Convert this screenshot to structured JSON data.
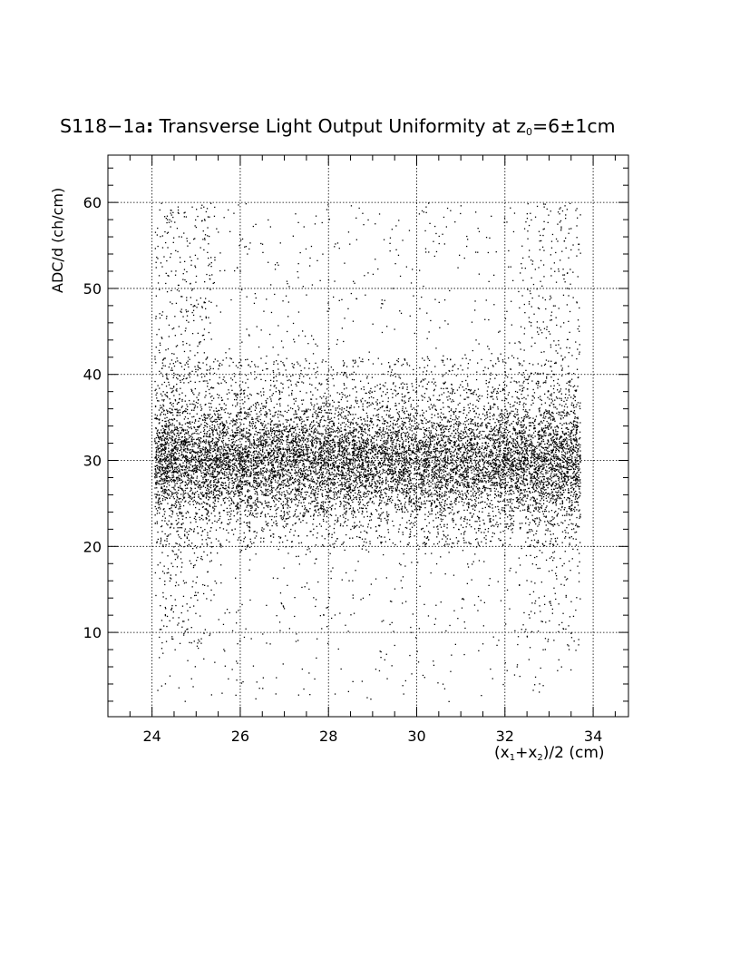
{
  "chart_data": {
    "type": "scatter",
    "title": {
      "prefix": "S118−1a",
      "colon": ":",
      "main": " Transverse Light Output Uniformity at z",
      "sub": "0",
      "suffix": "=6±1cm"
    },
    "xlabel": {
      "pre": "(x",
      "s1": "1",
      "mid": "+x",
      "s2": "2",
      "post": ")/2 (cm)"
    },
    "ylabel": "ADC/d (ch/cm)",
    "xlim": [
      23,
      34.8
    ],
    "ylim": [
      0.2,
      65.5
    ],
    "xticks": [
      24,
      26,
      28,
      30,
      32,
      34
    ],
    "yticks": [
      10,
      20,
      30,
      40,
      50,
      60
    ],
    "xtick_labels": [
      "24",
      "26",
      "28",
      "30",
      "32",
      "34"
    ],
    "ytick_labels": [
      "10",
      "20",
      "30",
      "40",
      "50",
      "60"
    ],
    "grid": true,
    "marker_color": "#000000",
    "distribution": {
      "x_range": [
        24.05,
        33.7
      ],
      "core_mean_y": 30,
      "core_spread_y": 3.2,
      "halo_y_range": [
        20,
        42
      ],
      "tail_y_range": [
        2,
        60
      ],
      "n_core": 9000,
      "n_halo": 2600,
      "n_tail": 1300,
      "n_edge": 900
    }
  }
}
